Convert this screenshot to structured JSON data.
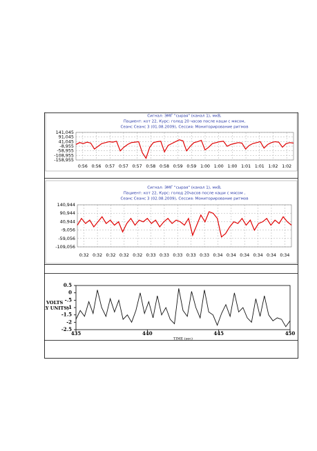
{
  "chart_data": [
    {
      "type": "line",
      "color": "#e00000",
      "grid": true,
      "title_lines": [
        "Сигнал: ЭМГ \"сырая\" (канал 1), мкВ,",
        "Пациент: кот 22, Курс: голод 20 часов после каши с мясом,",
        "Сеанс Сеанс 3 (01.08.2009), Сессия:   Мониторирование ритмов"
      ],
      "ylim": [
        -158.955,
        141.045
      ],
      "yticks": [
        {
          "value": 141.045,
          "label": "141,045"
        },
        {
          "value": 91.045,
          "label": "91,045"
        },
        {
          "value": 41.045,
          "label": "41,045"
        },
        {
          "value": -8.955,
          "label": "-8,955"
        },
        {
          "value": -58.955,
          "label": "-58,955"
        },
        {
          "value": -108.955,
          "label": "-108,955"
        },
        {
          "value": -158.955,
          "label": "-158,955"
        }
      ],
      "xtick_labels": [
        "0:56",
        "0:56",
        "0:57",
        "0:57",
        "0:57",
        "0:58",
        "0:58",
        "0:59",
        "0:59",
        "1:00",
        "1:00",
        "1:00",
        "1:01",
        "1:01",
        "1:02",
        "1:02"
      ],
      "values": [
        10,
        30,
        20,
        35,
        25,
        -40,
        -10,
        20,
        30,
        40,
        35,
        45,
        -60,
        -20,
        10,
        30,
        35,
        40,
        -80,
        -140,
        -20,
        30,
        40,
        45,
        -70,
        0,
        20,
        40,
        60,
        50,
        -60,
        -10,
        30,
        40,
        55,
        -50,
        -20,
        20,
        30,
        40,
        45,
        -10,
        10,
        20,
        30,
        25,
        -40,
        0,
        20,
        30,
        40,
        -30,
        10,
        30,
        40,
        35,
        -20,
        20,
        30,
        25
      ]
    },
    {
      "type": "line",
      "color": "#e00000",
      "grid": true,
      "title_lines": [
        "Сигнал: ЭМГ \"сырая\" (канал 1), мкВ,",
        "Пациент: кот 22, Курс: голод 20часов после каши с мясом ,",
        "Сеанс Сеанс 3 (02.08.2009), Сессия:   Мониторирование ритмов"
      ],
      "ylim": [
        -109.056,
        140.944
      ],
      "yticks": [
        {
          "value": 140.944,
          "label": "140,944"
        },
        {
          "value": 90.944,
          "label": "90,944"
        },
        {
          "value": 40.944,
          "label": "40,944"
        },
        {
          "value": -9.056,
          "label": "-9,056"
        },
        {
          "value": -59.056,
          "label": "-59,056"
        },
        {
          "value": -109.056,
          "label": "-109,056"
        }
      ],
      "xtick_labels": [
        "0:32",
        "0:32",
        "0:32",
        "0:32",
        "0:32",
        "0:33",
        "0:33",
        "0:33",
        "0:33",
        "0:33",
        "0:34",
        "0:34",
        "0:34",
        "0:34",
        "0:34",
        "0:34"
      ],
      "values": [
        20,
        60,
        30,
        50,
        10,
        40,
        70,
        30,
        50,
        20,
        40,
        -20,
        30,
        60,
        20,
        50,
        40,
        60,
        30,
        50,
        10,
        40,
        60,
        30,
        50,
        40,
        20,
        60,
        -40,
        20,
        80,
        40,
        100,
        90,
        60,
        -50,
        -30,
        10,
        40,
        30,
        60,
        20,
        50,
        -10,
        30,
        40,
        60,
        20,
        50,
        30,
        70,
        40,
        20
      ]
    },
    {
      "type": "line",
      "color": "#111111",
      "grid": false,
      "ylabel": [
        "VOLTS",
        "(ARBITRARY UNITS)"
      ],
      "xlabel": "TIME (sec)",
      "xlim": [
        435,
        450
      ],
      "xticks": [
        435,
        440,
        445,
        450
      ],
      "ylim": [
        -2.5,
        0.5
      ],
      "yticks": [
        0.5,
        0,
        {
          "value": -0.5,
          "label": "-.5"
        },
        -1,
        -1.5,
        -2,
        -2.5
      ],
      "x": [
        435,
        435.3,
        435.6,
        435.9,
        436.2,
        436.5,
        436.8,
        437.1,
        437.4,
        437.7,
        438,
        438.3,
        438.6,
        438.9,
        439.2,
        439.5,
        439.8,
        440.1,
        440.4,
        440.7,
        441,
        441.3,
        441.6,
        441.9,
        442.2,
        442.5,
        442.8,
        443.1,
        443.4,
        443.7,
        444,
        444.3,
        444.6,
        444.9,
        445.2,
        445.5,
        445.8,
        446.1,
        446.4,
        446.7,
        447,
        447.3,
        447.6,
        447.9,
        448.2,
        448.5,
        448.8,
        449.1,
        449.4,
        449.7,
        450
      ],
      "values": [
        -1.8,
        -1.2,
        -1.6,
        -0.6,
        -1.4,
        0.2,
        -1.0,
        -1.6,
        -0.4,
        -1.3,
        -0.5,
        -1.8,
        -1.5,
        -2.0,
        -1.2,
        0.0,
        -1.4,
        -0.6,
        -1.7,
        -0.2,
        -1.5,
        -1.0,
        -1.8,
        -2.1,
        0.3,
        -1.2,
        -1.6,
        0.1,
        -1.0,
        -1.7,
        0.2,
        -1.3,
        -1.5,
        -2.2,
        -1.4,
        -0.8,
        -1.6,
        0.0,
        -1.3,
        -1.0,
        -1.7,
        -2.0,
        -0.4,
        -1.6,
        -0.2,
        -1.5,
        -1.9,
        -1.7,
        -1.8,
        -2.3,
        -1.9
      ]
    }
  ]
}
